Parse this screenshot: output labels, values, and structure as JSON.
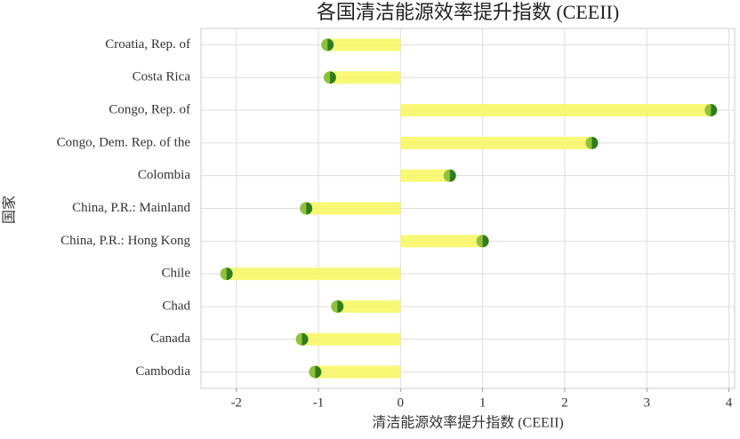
{
  "chart_data": {
    "type": "lollipop",
    "title": "各国清洁能源效率提升指数 (CEEII)",
    "x_label": "清洁能源效率提升指数 (CEEII)",
    "y_label": "国家",
    "categories": [
      "Croatia, Rep. of",
      "Costa Rica",
      "Congo, Rep. of",
      "Congo, Dem. Rep. of the",
      "Colombia",
      "China, P.R.: Mainland",
      "China, P.R.: Hong Kong",
      "Chile",
      "Chad",
      "Canada",
      "Cambodia"
    ],
    "values": [
      -0.89,
      -0.86,
      3.78,
      2.33,
      0.6,
      -1.15,
      1.0,
      -2.12,
      -0.77,
      -1.2,
      -1.04
    ],
    "xlim": [
      -2.43,
      4.07
    ],
    "xticks": [
      -2,
      -1,
      0,
      1,
      2,
      3,
      4
    ],
    "grid": true,
    "bar_color": "#f7f75e",
    "dot_colors": [
      "#8fc23a",
      "#2f7d1c"
    ]
  }
}
